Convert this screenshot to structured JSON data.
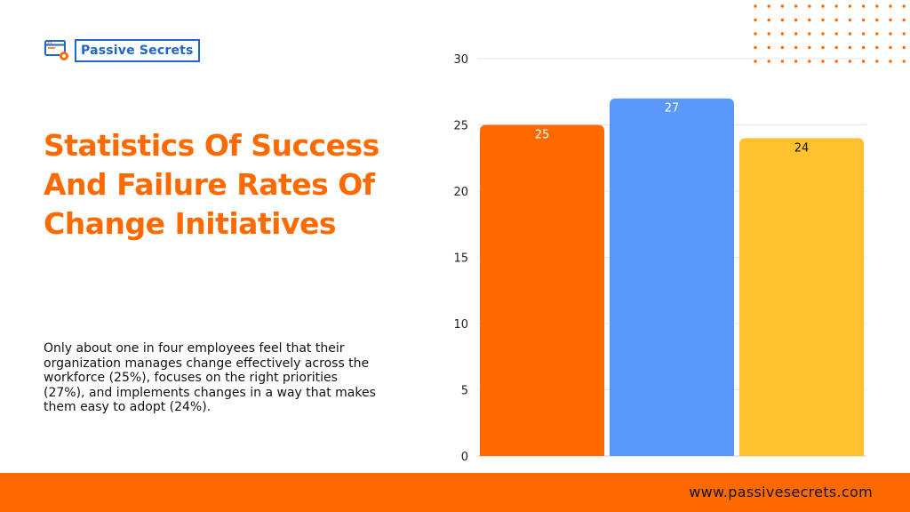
{
  "brand": {
    "name": "Passive Secrets",
    "url": "www.passivesecrets.com"
  },
  "headline": "Statistics Of Success And Failure Rates Of Change Initiatives",
  "description": "Only about one in four employees feel that their organization manages change effectively across the workforce (25%), focuses on the right priorities (27%), and implements changes in a way that makes them easy to adopt (24%).",
  "colors": {
    "accent": "#ff6a00",
    "logo_blue": "#1f66c6"
  },
  "icons": {
    "logo": "browser-gear-icon"
  },
  "chart_data": {
    "type": "bar",
    "categories": [
      "",
      "",
      ""
    ],
    "values": [
      25,
      27,
      24
    ],
    "bar_colors": [
      "#ff6a00",
      "#5b98fb",
      "#ffc12d"
    ],
    "label_colors": [
      "#ffffff",
      "#ffffff",
      "#111111"
    ],
    "ylim": [
      0,
      30
    ],
    "yticks": [
      0,
      5,
      10,
      15,
      20,
      25,
      30
    ],
    "grid": true,
    "title": "",
    "xlabel": "",
    "ylabel": ""
  }
}
